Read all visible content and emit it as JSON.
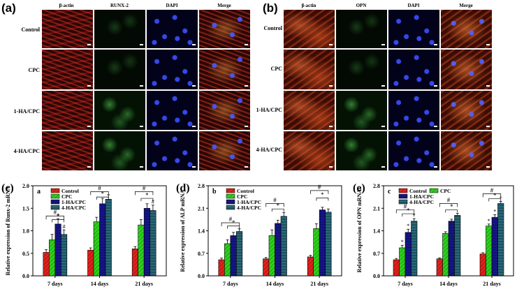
{
  "panel_a": {
    "letter": "(a)",
    "columns": [
      "β-actin",
      "RUNX-2",
      "DAPI",
      "Merge"
    ],
    "rows": [
      "Control",
      "CPC",
      "1-HA/CPC",
      "4-HA/CPC"
    ]
  },
  "panel_b": {
    "letter": "(b)",
    "columns": [
      "β-actin",
      "OPN",
      "DAPI",
      "Merge"
    ],
    "rows": [
      "Control",
      "CPC",
      "1-HA/CPC",
      "4-HA/CPC"
    ]
  },
  "colors": {
    "control": "#e0231c",
    "cpc": "#2fd11f",
    "ha1": "#16168a",
    "ha4": "#2a6a7a"
  },
  "chart_data": [
    {
      "panel_letter": "(c)",
      "inner_label": "a",
      "type": "bar",
      "ylabel": "Relative expression of Runx-2 mRNA",
      "categories": [
        "7 days",
        "14 days",
        "21 days"
      ],
      "ylim": [
        0,
        2.0
      ],
      "yticks": [
        "0.0",
        "0.5",
        "1.0",
        "1.5",
        "2.0"
      ],
      "series": [
        {
          "name": "Control",
          "values": [
            0.52,
            0.57,
            0.6
          ],
          "errors": [
            0.06,
            0.05,
            0.05
          ]
        },
        {
          "name": "CPC",
          "values": [
            0.8,
            1.2,
            1.13
          ],
          "errors": [
            0.12,
            0.1,
            0.12
          ]
        },
        {
          "name": "1-HA/CPC",
          "values": [
            1.15,
            1.6,
            1.5
          ],
          "errors": [
            0.12,
            0.12,
            0.1
          ]
        },
        {
          "name": "4-HA/CPC",
          "values": [
            0.92,
            1.7,
            1.45
          ],
          "errors": [
            0.1,
            0.1,
            0.12
          ]
        }
      ],
      "legend_layout": "column",
      "hash_bracket_tops": [
        1.33,
        1.87,
        1.87
      ],
      "star_bracket_tops": [
        1.25,
        1.75,
        1.72
      ],
      "marks_on_bars": [
        [
          "",
          "",
          "*",
          "#"
        ],
        [
          "",
          "",
          "",
          ""
        ],
        [
          "",
          "",
          "",
          "#"
        ]
      ],
      "hash_label": "#",
      "star_label": "*"
    },
    {
      "panel_letter": "(d)",
      "inner_label": "b",
      "type": "bar",
      "ylabel": "Relative expression of ALP mRNA",
      "categories": [
        "7 days",
        "14 days",
        "21 days"
      ],
      "ylim": [
        0,
        2.8
      ],
      "yticks": [
        "0.0",
        "0.7",
        "1.4",
        "2.1",
        "2.8"
      ],
      "series": [
        {
          "name": "Control",
          "values": [
            0.5,
            0.53,
            0.59
          ],
          "errors": [
            0.05,
            0.04,
            0.05
          ]
        },
        {
          "name": "CPC",
          "values": [
            1.0,
            1.25,
            1.47
          ],
          "errors": [
            0.12,
            0.18,
            0.15
          ]
        },
        {
          "name": "1-HA/CPC",
          "values": [
            1.25,
            1.63,
            2.05
          ],
          "errors": [
            0.1,
            0.1,
            0.08
          ]
        },
        {
          "name": "4-HA/CPC",
          "values": [
            1.38,
            1.85,
            1.98
          ],
          "errors": [
            0.08,
            0.12,
            0.1
          ]
        }
      ],
      "legend_layout": "column",
      "hash_bracket_tops": [
        1.65,
        2.25,
        2.65
      ],
      "star_bracket_tops": [
        1.55,
        2.08,
        2.42
      ],
      "marks_on_bars": [
        [
          "",
          "",
          "",
          ""
        ],
        [
          "",
          "",
          "",
          ""
        ],
        [
          "",
          "",
          "",
          ""
        ]
      ],
      "hash_label": "#",
      "star_label": "*"
    },
    {
      "panel_letter": "(e)",
      "inner_label": "c",
      "type": "bar",
      "ylabel": "Relative expression of OPN mRNA",
      "categories": [
        "7 days",
        "14 days",
        "21 days"
      ],
      "ylim": [
        0,
        2.8
      ],
      "yticks": [
        "0.0",
        "0.7",
        "1.4",
        "2.1",
        "2.8"
      ],
      "series": [
        {
          "name": "Control",
          "values": [
            0.5,
            0.53,
            0.68
          ],
          "errors": [
            0.04,
            0.03,
            0.04
          ]
        },
        {
          "name": "CPC",
          "values": [
            0.87,
            1.32,
            1.55
          ],
          "errors": [
            0.08,
            0.05,
            0.06
          ]
        },
        {
          "name": "1-HA/CPC",
          "values": [
            1.35,
            1.7,
            1.82
          ],
          "errors": [
            0.1,
            0.06,
            0.08
          ]
        },
        {
          "name": "4-HA/CPC",
          "values": [
            1.7,
            1.88,
            2.25
          ],
          "errors": [
            0.08,
            0.06,
            0.06
          ]
        }
      ],
      "legend_layout": "grid",
      "hash_bracket_tops": [
        2.05,
        2.25,
        2.55
      ],
      "star_bracket_tops": [
        1.93,
        2.05,
        2.4
      ],
      "marks_on_bars": [
        [
          "",
          "*",
          "*",
          "*"
        ],
        [
          "",
          "",
          "",
          ""
        ],
        [
          "",
          "*",
          "*",
          "*"
        ]
      ],
      "hash_label": "#",
      "star_label": "*"
    }
  ]
}
